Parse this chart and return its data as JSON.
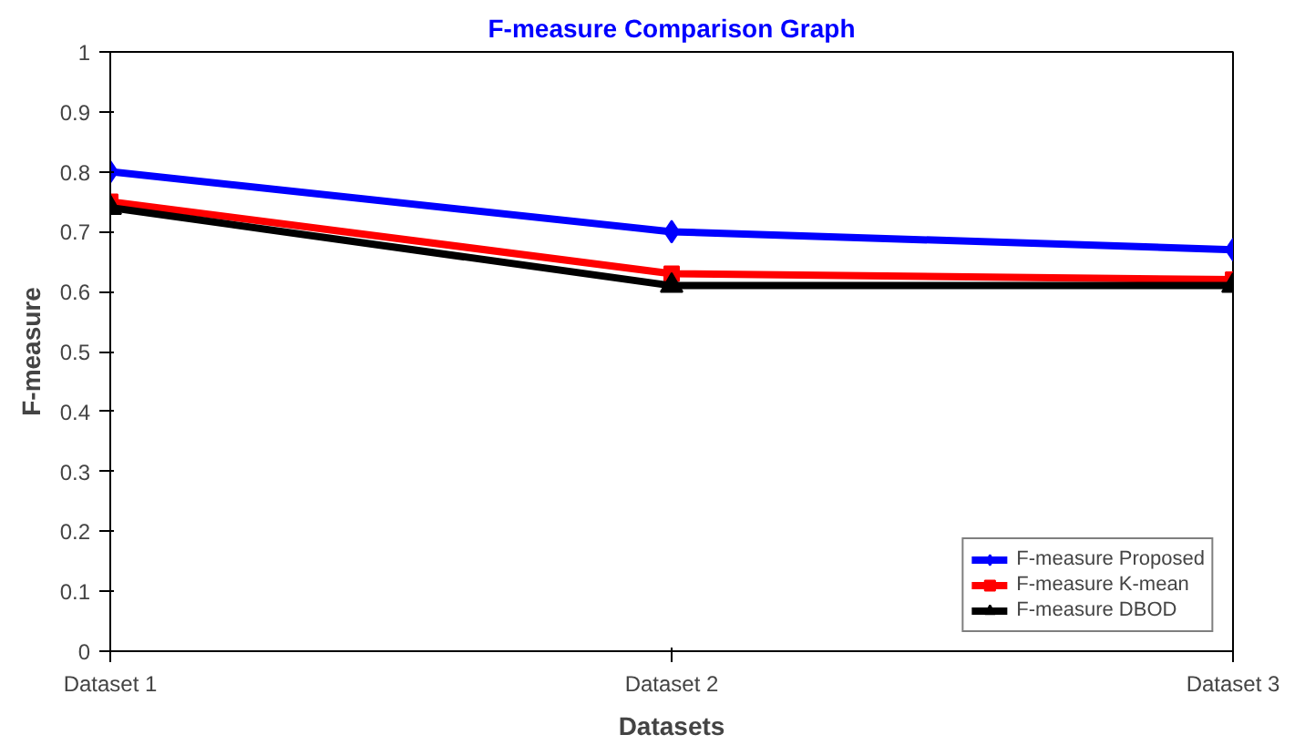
{
  "chart_data": {
    "type": "line",
    "title": "F-measure Comparison Graph",
    "xlabel": "Datasets",
    "ylabel": "F-measure",
    "categories": [
      "Dataset 1",
      "Dataset 2",
      "Dataset 3"
    ],
    "ylim": [
      0,
      1
    ],
    "yticks": [
      0,
      0.1,
      0.2,
      0.3,
      0.4,
      0.5,
      0.6,
      0.7,
      0.8,
      0.9,
      1
    ],
    "grid": false,
    "legend": "bottom right",
    "line_style": "solid",
    "series": [
      {
        "name": "F-measure Proposed",
        "color": "#0000ff",
        "marker": "diamond",
        "values": [
          0.8,
          0.7,
          0.67
        ]
      },
      {
        "name": "F-measure K-mean",
        "color": "#ff0000",
        "marker": "square",
        "values": [
          0.75,
          0.63,
          0.62
        ]
      },
      {
        "name": "F-measure DBOD",
        "color": "#000000",
        "marker": "triangle",
        "values": [
          0.74,
          0.61,
          0.61
        ]
      }
    ]
  }
}
